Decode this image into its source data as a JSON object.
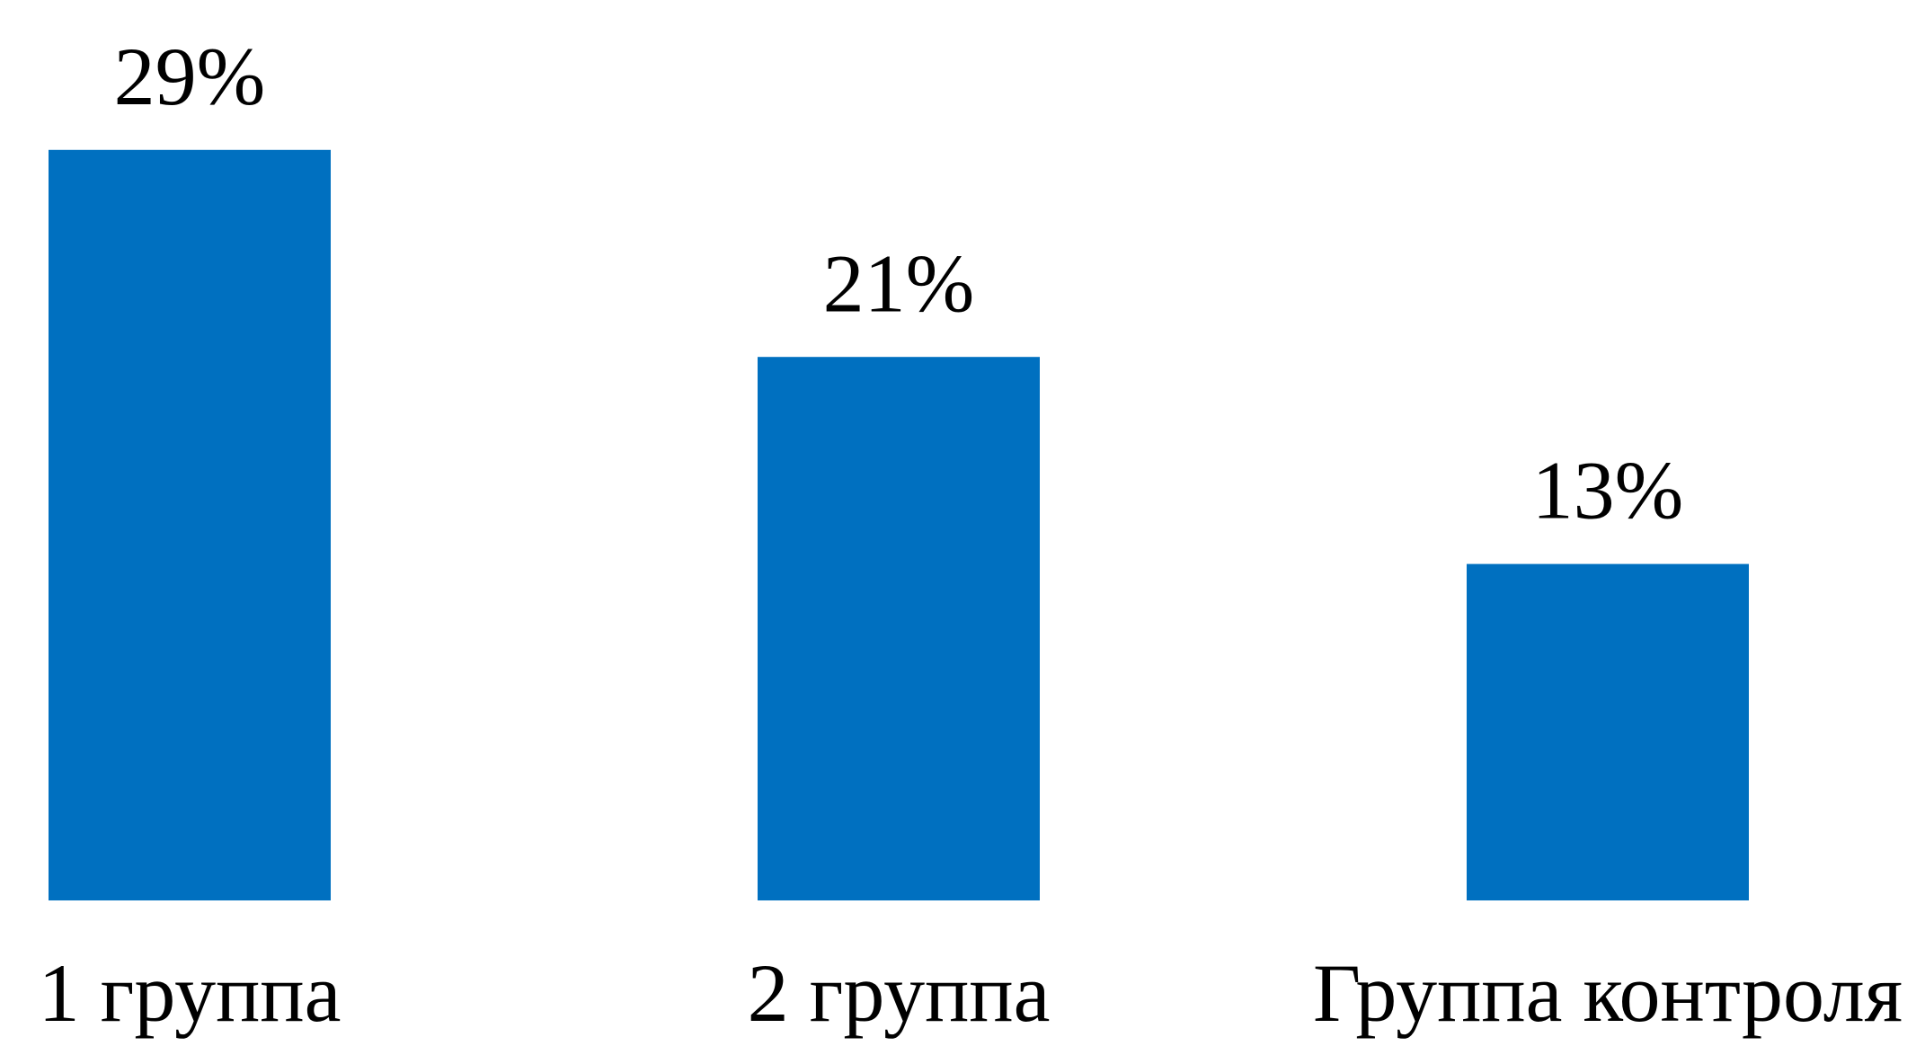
{
  "chart_data": {
    "type": "bar",
    "categories": [
      "1 группа",
      "2 группа",
      "Группа контроля"
    ],
    "values": [
      29,
      21,
      13
    ],
    "value_labels": [
      "29%",
      "21%",
      "13%"
    ],
    "color": "#0070c0"
  }
}
